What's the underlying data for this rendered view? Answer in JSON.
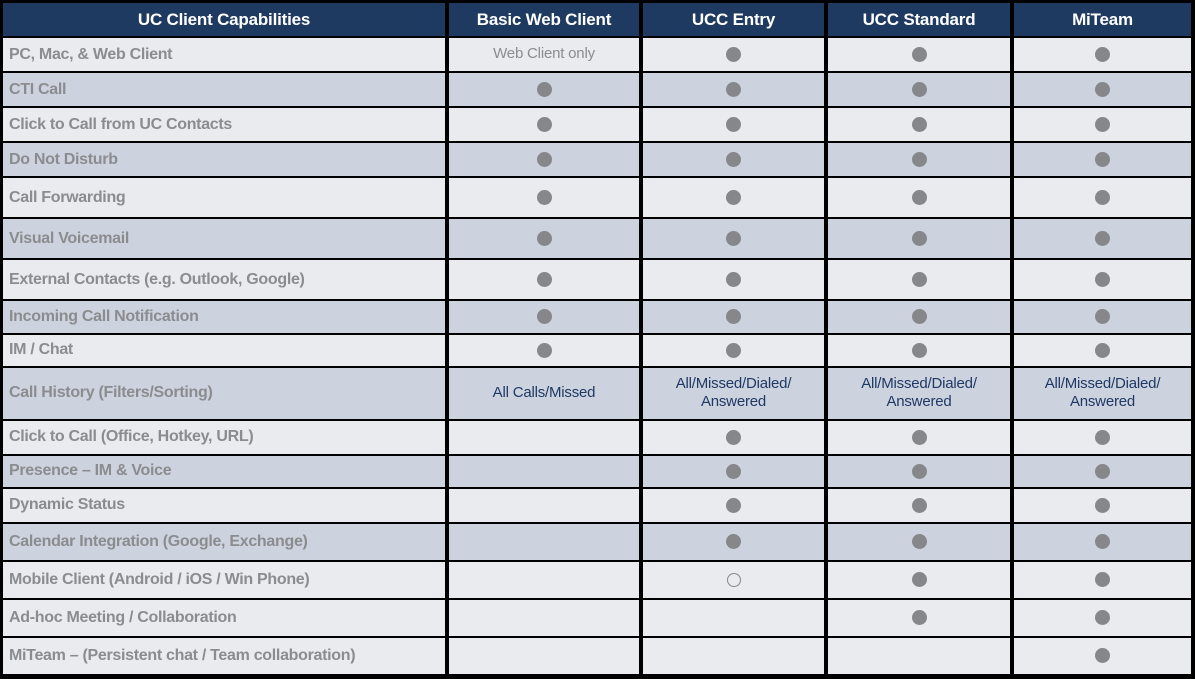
{
  "colors": {
    "header_bg": "#1f3a61",
    "header_fg": "#ffffff",
    "row_light": "#e9ebee",
    "row_shaded": "#cdd3de",
    "label_fg": "#8a8c8f",
    "muted_fg": "#8a8d90",
    "navy_fg": "#1f3864",
    "dot": "#85878a"
  },
  "icons": {
    "dot": "included-dot-icon",
    "open_dot": "optional-open-dot-icon"
  },
  "table": {
    "columns": [
      {
        "label": "UC Client Capabilities"
      },
      {
        "label": "Basic Web Client"
      },
      {
        "label": "UCC Entry"
      },
      {
        "label": "UCC Standard"
      },
      {
        "label": "MiTeam"
      }
    ],
    "rows": [
      {
        "label": "PC, Mac, & Web Client",
        "shaded": false,
        "cells": [
          {
            "type": "text",
            "value": "Web Client only",
            "muted": true
          },
          {
            "type": "dot"
          },
          {
            "type": "dot"
          },
          {
            "type": "dot"
          }
        ]
      },
      {
        "label": "CTI Call",
        "shaded": true,
        "cells": [
          {
            "type": "dot"
          },
          {
            "type": "dot"
          },
          {
            "type": "dot"
          },
          {
            "type": "dot"
          }
        ]
      },
      {
        "label": "Click to Call from UC Contacts",
        "shaded": false,
        "cells": [
          {
            "type": "dot"
          },
          {
            "type": "dot"
          },
          {
            "type": "dot"
          },
          {
            "type": "dot"
          }
        ]
      },
      {
        "label": "Do Not Disturb",
        "shaded": true,
        "cells": [
          {
            "type": "dot"
          },
          {
            "type": "dot"
          },
          {
            "type": "dot"
          },
          {
            "type": "dot"
          }
        ]
      },
      {
        "label": "Call Forwarding",
        "shaded": false,
        "cells": [
          {
            "type": "dot"
          },
          {
            "type": "dot"
          },
          {
            "type": "dot"
          },
          {
            "type": "dot"
          }
        ]
      },
      {
        "label": "Visual Voicemail",
        "shaded": true,
        "cells": [
          {
            "type": "dot"
          },
          {
            "type": "dot"
          },
          {
            "type": "dot"
          },
          {
            "type": "dot"
          }
        ]
      },
      {
        "label": "External Contacts (e.g. Outlook, Google)",
        "shaded": false,
        "cells": [
          {
            "type": "dot"
          },
          {
            "type": "dot"
          },
          {
            "type": "dot"
          },
          {
            "type": "dot"
          }
        ]
      },
      {
        "label": "Incoming Call Notification",
        "shaded": true,
        "cells": [
          {
            "type": "dot"
          },
          {
            "type": "dot"
          },
          {
            "type": "dot"
          },
          {
            "type": "dot"
          }
        ]
      },
      {
        "label": "IM / Chat",
        "shaded": false,
        "cells": [
          {
            "type": "dot"
          },
          {
            "type": "dot"
          },
          {
            "type": "dot"
          },
          {
            "type": "dot"
          }
        ]
      },
      {
        "label": "Call History (Filters/Sorting)",
        "shaded": true,
        "cells": [
          {
            "type": "text",
            "value": "All Calls/Missed"
          },
          {
            "type": "text",
            "value": "All/Missed/Dialed/\nAnswered"
          },
          {
            "type": "text",
            "value": "All/Missed/Dialed/\nAnswered"
          },
          {
            "type": "text",
            "value": "All/Missed/Dialed/\nAnswered"
          }
        ]
      },
      {
        "label": "Click to Call (Office, Hotkey, URL)",
        "shaded": false,
        "cells": [
          {
            "type": "empty"
          },
          {
            "type": "dot"
          },
          {
            "type": "dot"
          },
          {
            "type": "dot"
          }
        ]
      },
      {
        "label": "Presence – IM & Voice",
        "shaded": true,
        "cells": [
          {
            "type": "empty"
          },
          {
            "type": "dot"
          },
          {
            "type": "dot"
          },
          {
            "type": "dot"
          }
        ]
      },
      {
        "label": "Dynamic Status",
        "shaded": false,
        "cells": [
          {
            "type": "empty"
          },
          {
            "type": "dot"
          },
          {
            "type": "dot"
          },
          {
            "type": "dot"
          }
        ]
      },
      {
        "label": "Calendar Integration (Google, Exchange)",
        "shaded": true,
        "cells": [
          {
            "type": "empty"
          },
          {
            "type": "dot"
          },
          {
            "type": "dot"
          },
          {
            "type": "dot"
          }
        ]
      },
      {
        "label": "Mobile Client (Android / iOS / Win Phone)",
        "shaded": false,
        "cells": [
          {
            "type": "empty"
          },
          {
            "type": "open-dot"
          },
          {
            "type": "dot"
          },
          {
            "type": "dot"
          }
        ]
      },
      {
        "label": "Ad-hoc Meeting / Collaboration",
        "shaded": false,
        "cells": [
          {
            "type": "empty"
          },
          {
            "type": "empty"
          },
          {
            "type": "dot"
          },
          {
            "type": "dot"
          }
        ]
      },
      {
        "label": "MiTeam – (Persistent chat / Team collaboration)",
        "shaded": false,
        "cells": [
          {
            "type": "empty"
          },
          {
            "type": "empty"
          },
          {
            "type": "empty"
          },
          {
            "type": "dot"
          }
        ]
      }
    ]
  }
}
